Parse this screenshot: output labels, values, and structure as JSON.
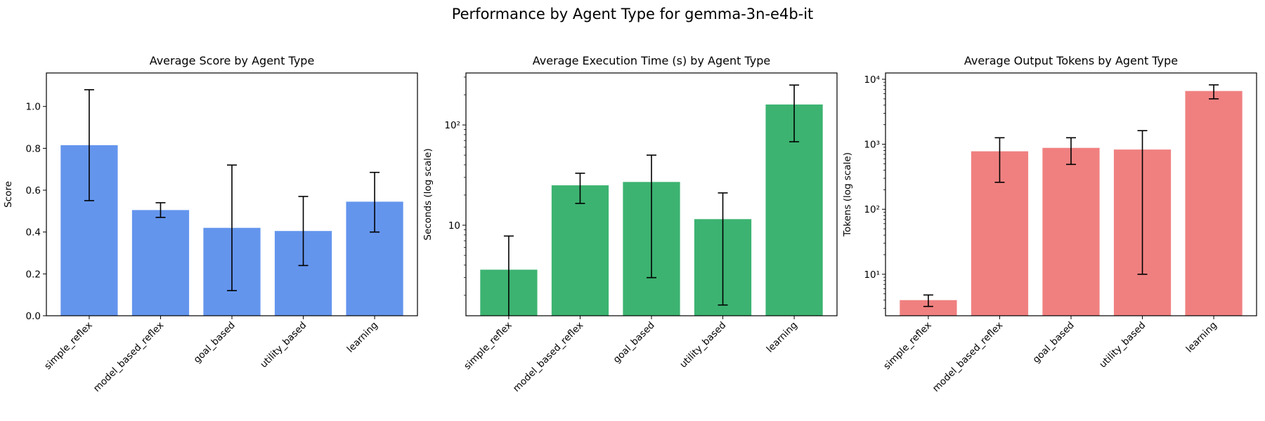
{
  "figure": {
    "title": "Performance by Agent Type for gemma-3n-e4b-it"
  },
  "chart_data": [
    {
      "type": "bar",
      "title": "Average Score by Agent Type",
      "xlabel": "",
      "ylabel": "Score",
      "yscale": "linear",
      "ylim": [
        0,
        1.16
      ],
      "yticks": [
        0.0,
        0.2,
        0.4,
        0.6,
        0.8,
        1.0
      ],
      "ytick_labels": [
        "0.0",
        "0.2",
        "0.4",
        "0.6",
        "0.8",
        "1.0"
      ],
      "color": "#6495ED",
      "grid": false,
      "categories": [
        "simple_reflex",
        "model_based_reflex",
        "goal_based",
        "utility_based",
        "learning"
      ],
      "values": [
        0.815,
        0.505,
        0.42,
        0.405,
        0.545
      ],
      "error_low": [
        0.55,
        0.47,
        0.12,
        0.24,
        0.4
      ],
      "error_high": [
        1.08,
        0.54,
        0.72,
        0.57,
        0.685
      ]
    },
    {
      "type": "bar",
      "title": "Average Execution Time (s) by Agent Type",
      "xlabel": "",
      "ylabel": "Seconds (log scale)",
      "yscale": "log",
      "ylim": [
        1.25,
        330
      ],
      "yticks": [
        10,
        100
      ],
      "ytick_labels": [
        "10",
        "10²"
      ],
      "color": "#3CB371",
      "grid": false,
      "categories": [
        "simple_reflex",
        "model_based_reflex",
        "goal_based",
        "utility_based",
        "learning"
      ],
      "values": [
        3.6,
        25,
        27,
        11.5,
        160
      ],
      "error_low": [
        1.25,
        16.5,
        3.0,
        1.6,
        68
      ],
      "error_high": [
        7.8,
        33,
        50,
        21,
        250
      ]
    },
    {
      "type": "bar",
      "title": "Average Output Tokens by Agent Type",
      "xlabel": "",
      "ylabel": "Tokens (log scale)",
      "yscale": "log",
      "ylim": [
        2.3,
        12500
      ],
      "yticks": [
        10,
        100,
        1000,
        10000
      ],
      "ytick_labels": [
        "10¹",
        "10²",
        "10³",
        "10⁴"
      ],
      "color": "#F08080",
      "grid": false,
      "categories": [
        "simple_reflex",
        "model_based_reflex",
        "goal_based",
        "utility_based",
        "learning"
      ],
      "values": [
        4.0,
        780,
        880,
        830,
        6600
      ],
      "error_low": [
        3.2,
        260,
        490,
        10,
        5000
      ],
      "error_high": [
        4.8,
        1260,
        1260,
        1620,
        8200
      ]
    }
  ]
}
